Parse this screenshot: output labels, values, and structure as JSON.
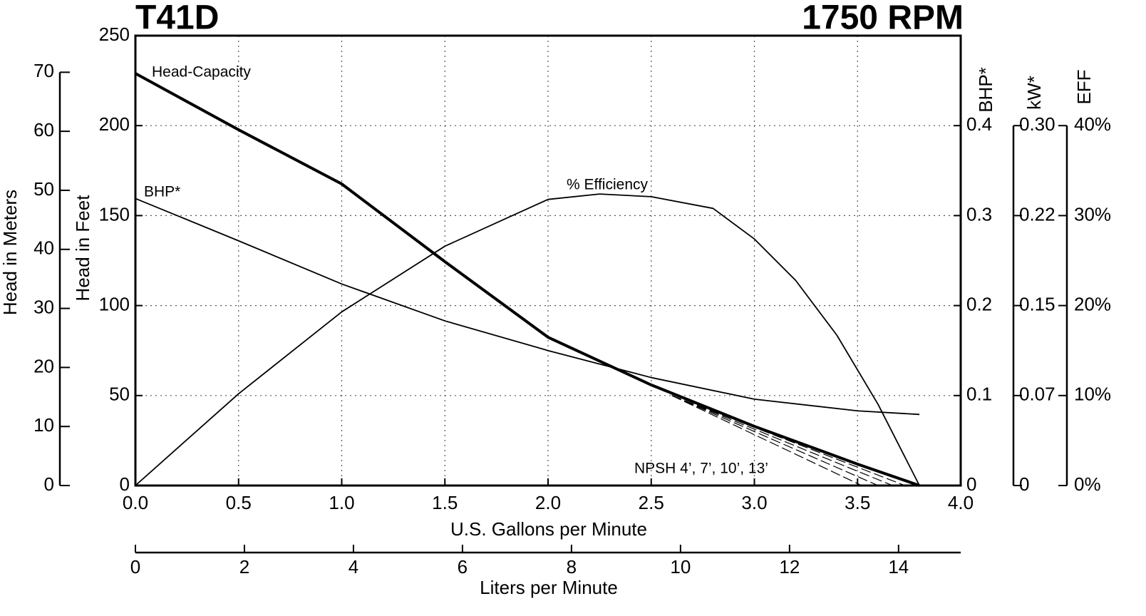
{
  "chart_data": {
    "type": "line",
    "title": "T41D",
    "subtitle": "1750 RPM",
    "xlabel": "U.S. Gallons per Minute",
    "xlim": [
      0,
      4
    ],
    "xticks": [
      {
        "value": 0,
        "label": "0.0"
      },
      0.5,
      {
        "value": 1,
        "label": "1.0"
      },
      1.5,
      {
        "value": 2,
        "label": "2.0"
      },
      2.5,
      {
        "value": 3,
        "label": "3.0"
      },
      3.5,
      {
        "value": 4,
        "label": "4.0"
      }
    ],
    "x2label": "Liters per Minute",
    "x2lim": [
      0,
      15.14
    ],
    "x2ticks": [
      0,
      2,
      4,
      6,
      8,
      10,
      12,
      14
    ],
    "ylabel": "Head in Feet",
    "ylim": [
      0,
      250
    ],
    "yticks": [
      0,
      50,
      100,
      150,
      200,
      250
    ],
    "grid": true,
    "meters_label": "Head in Meters",
    "meters_lim": [
      0,
      76.2
    ],
    "meters_ticks": [
      0,
      10,
      20,
      30,
      40,
      50,
      60,
      70
    ],
    "y2label": "BHP*",
    "y2lim": [
      0,
      0.5
    ],
    "y2ticks": [
      0,
      0.1,
      0.2,
      0.3,
      0.4
    ],
    "kw_label": "kW*",
    "kw_lim": [
      0,
      0.373
    ],
    "kw_ticks": [
      0,
      {
        "value": 0.0746,
        "label": "0.07"
      },
      {
        "value": 0.1492,
        "label": "0.15"
      },
      {
        "value": 0.2238,
        "label": "0.22"
      },
      {
        "value": 0.2984,
        "label": "0.30"
      }
    ],
    "eff_label": "EFF",
    "eff_lim": [
      0,
      50
    ],
    "eff_ticks": [
      {
        "value": 0,
        "label": "0%"
      },
      {
        "value": 10,
        "label": "10%"
      },
      {
        "value": 20,
        "label": "20%"
      },
      {
        "value": 30,
        "label": "30%"
      },
      {
        "value": 40,
        "label": "40%"
      }
    ],
    "series": [
      {
        "name": "Head-Capacity",
        "color": "#000000",
        "line_width": 4,
        "axis": "y",
        "x": [
          0,
          0.5,
          1.0,
          1.5,
          2.0,
          2.5,
          3.0,
          3.5,
          3.8
        ],
        "values": [
          229,
          197.7,
          167.6,
          124.4,
          82.4,
          55.9,
          32.9,
          11.9,
          0
        ]
      },
      {
        "name": "BHP*",
        "color": "#000000",
        "line_width": 1.8,
        "axis": "y2",
        "x": [
          0,
          0.5,
          1.0,
          1.5,
          2.0,
          2.5,
          3.0,
          3.5,
          3.8
        ],
        "values": [
          0.319,
          0.272,
          0.224,
          0.183,
          0.15,
          0.12,
          0.096,
          0.083,
          0.079
        ]
      },
      {
        "name": "% Efficiency",
        "color": "#000000",
        "line_width": 1.8,
        "axis": "eff",
        "x": [
          0,
          0.5,
          1.0,
          1.5,
          2.0,
          2.25,
          2.5,
          2.8,
          3.0,
          3.2,
          3.4,
          3.6,
          3.8
        ],
        "values": [
          0,
          10.2,
          19.3,
          26.6,
          31.8,
          32.4,
          32.1,
          30.8,
          27.4,
          22.8,
          16.7,
          9.0,
          0
        ]
      }
    ],
    "npsh": {
      "label": "NPSH 4’, 7’, 10’, 13’",
      "color": "#000000",
      "curves": [
        {
          "x": [
            2.6,
            3.52
          ],
          "values": [
            50,
            0
          ]
        },
        {
          "x": [
            2.6,
            3.6
          ],
          "values": [
            50,
            0
          ]
        },
        {
          "x": [
            2.6,
            3.67
          ],
          "values": [
            50,
            0
          ]
        },
        {
          "x": [
            2.6,
            3.73
          ],
          "values": [
            50,
            0
          ]
        }
      ]
    }
  }
}
